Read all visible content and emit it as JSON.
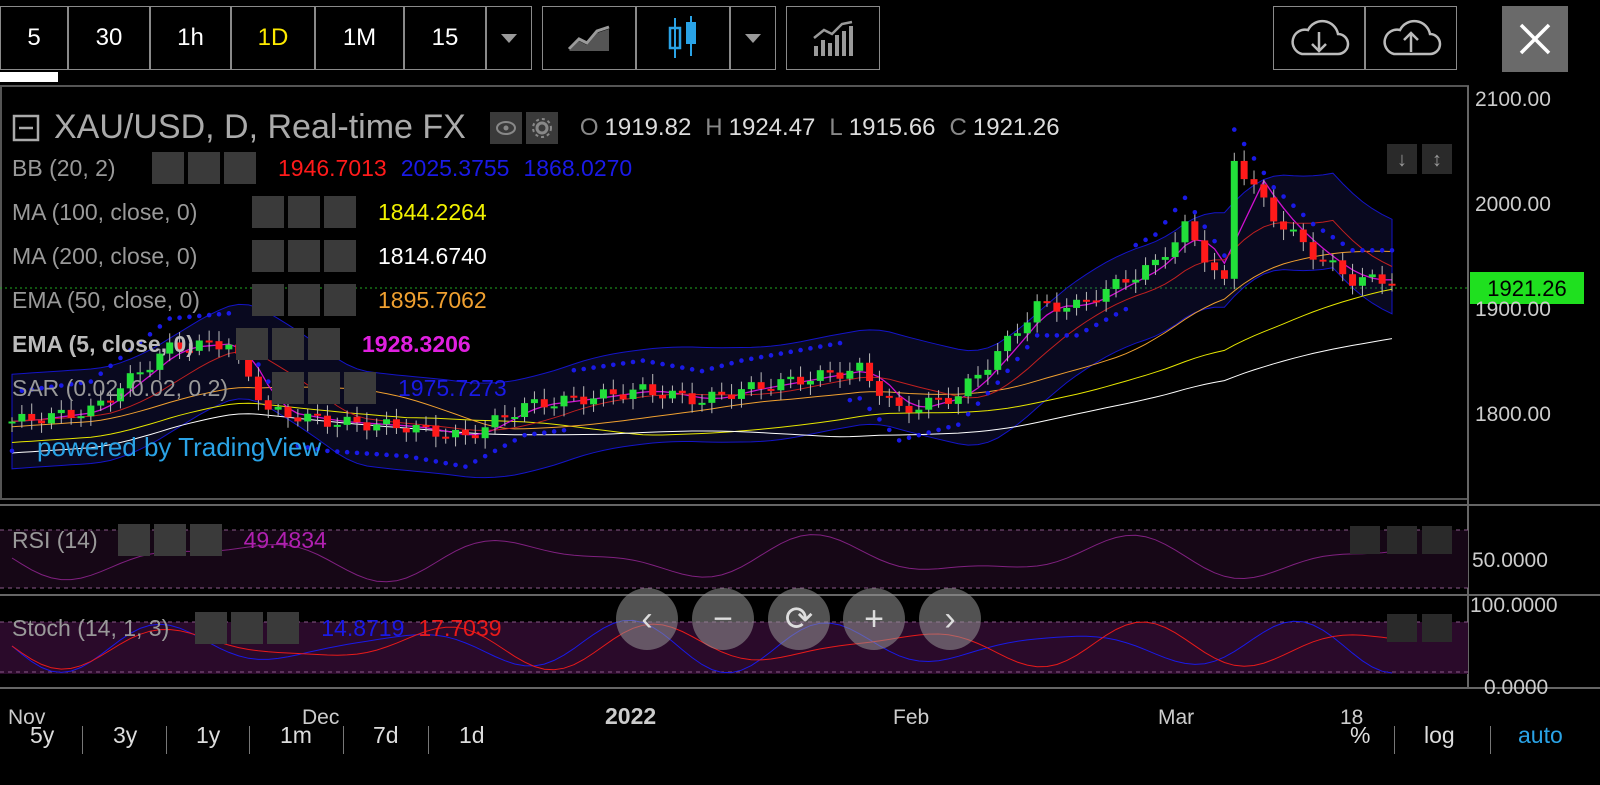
{
  "toolbar": {
    "intervals": [
      "5",
      "30",
      "1h",
      "1D",
      "1M",
      "15"
    ],
    "active_interval": "1D"
  },
  "chart": {
    "title": "XAU/USD, D, Real-time FX",
    "ohlc": {
      "o_label": "O",
      "o": "1919.82",
      "h_label": "H",
      "h": "1924.47",
      "l_label": "L",
      "l": "1915.66",
      "c_label": "C",
      "c": "1921.26"
    },
    "last_price": "1921.26",
    "price_axis": [
      "2100.00",
      "2000.00",
      "1900.00",
      "1800.00"
    ],
    "rsi_axis": [
      "50.0000"
    ],
    "stoch_axis": [
      "100.0000",
      "0.0000"
    ],
    "time_axis": [
      "Nov",
      "Dec",
      "2022",
      "Feb",
      "Mar",
      "18"
    ],
    "powered_by": "powered by TradingView",
    "colors": {
      "up": "#22e03a",
      "down": "#ff1a1a",
      "bb": "#1414c8",
      "sar": "#1a1ae6",
      "ema5": "#d010d0",
      "ma100": "#e6e600",
      "ma200": "#ffffff",
      "ema50": "#f0a030",
      "last": "#1fe01f"
    }
  },
  "indicators": [
    {
      "label": "BB (20, 2)",
      "values": [
        {
          "v": "1946.7013",
          "color": "#ff1a1a"
        },
        {
          "v": "2025.3755",
          "color": "#1a1ae6"
        },
        {
          "v": "1868.0270",
          "color": "#1a1ae6"
        }
      ],
      "bold": false
    },
    {
      "label": "MA (100, close, 0)",
      "values": [
        {
          "v": "1844.2264",
          "color": "#f2f200"
        }
      ],
      "bold": false
    },
    {
      "label": "MA (200, close, 0)",
      "values": [
        {
          "v": "1814.6740",
          "color": "#ffffff"
        }
      ],
      "bold": false
    },
    {
      "label": "EMA (50, close, 0)",
      "values": [
        {
          "v": "1895.7062",
          "color": "#f0a030"
        }
      ],
      "bold": false
    },
    {
      "label": "EMA (5, close, 0)",
      "values": [
        {
          "v": "1928.3206",
          "color": "#e020e0"
        }
      ],
      "bold": true
    },
    {
      "label": "SAR (0.02, 0.02, 0.2)",
      "values": [
        {
          "v": "1975.7273",
          "color": "#1a1ae6"
        }
      ],
      "bold": false
    }
  ],
  "rsi": {
    "label": "RSI (14)",
    "value": "49.4834",
    "color": "#b020b0"
  },
  "stoch": {
    "label": "Stoch (14, 1, 3)",
    "k": "14.8719",
    "d": "17.7039",
    "k_color": "#1a1ae6",
    "d_color": "#e81a1a"
  },
  "ranges": [
    "5y",
    "3y",
    "1y",
    "1m",
    "7d",
    "1d"
  ],
  "scale_options": [
    "%",
    "log",
    "auto"
  ],
  "active_scale": "auto"
}
